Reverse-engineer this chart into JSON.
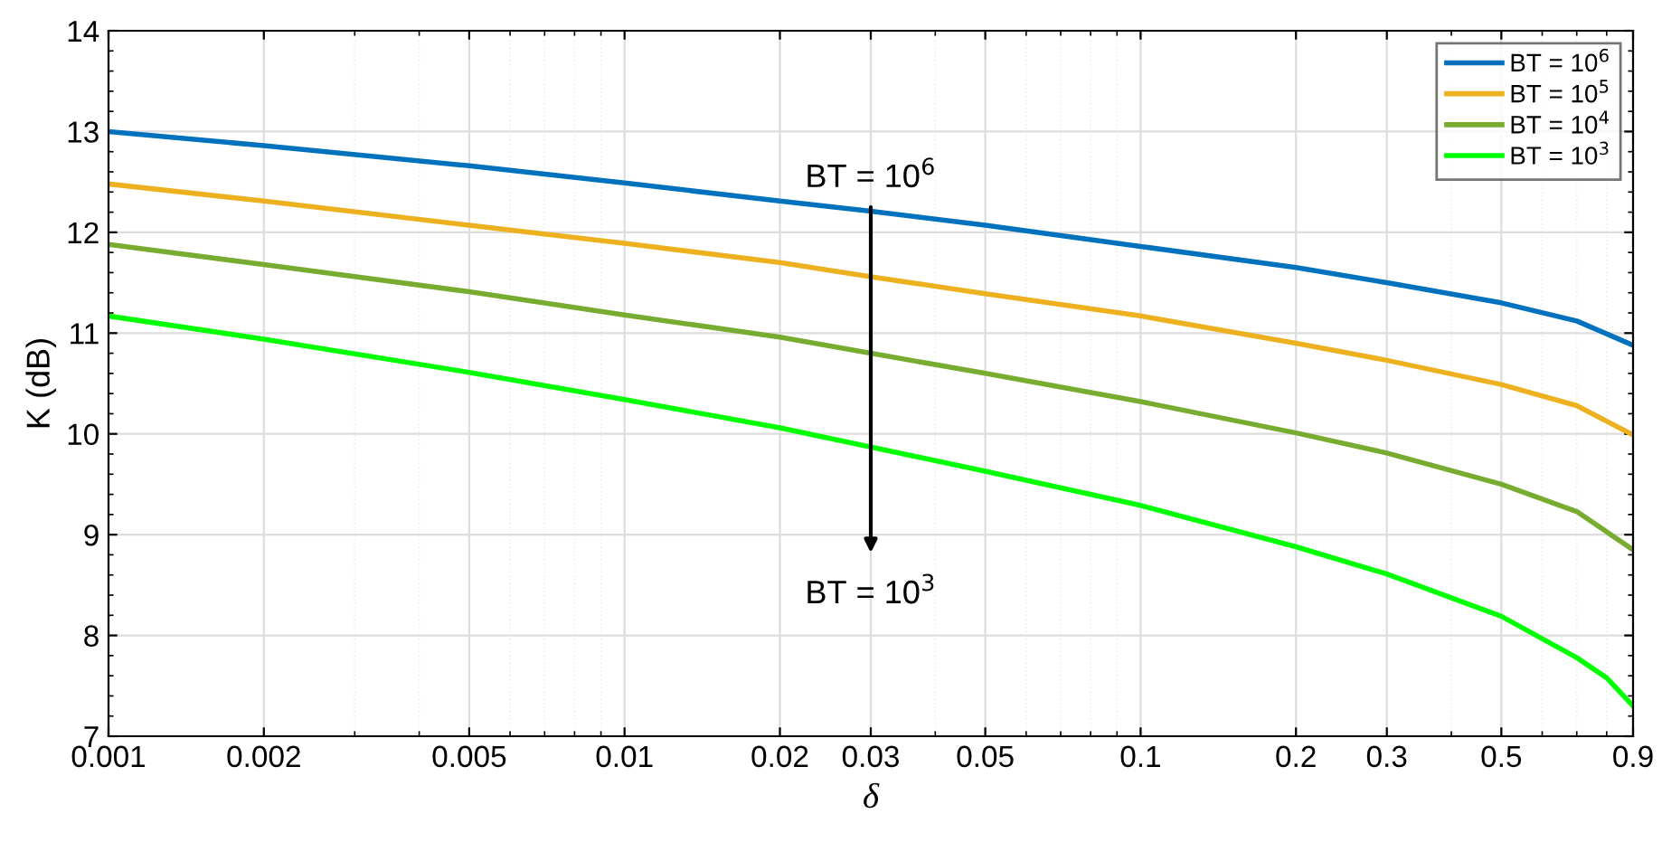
{
  "chart_data": {
    "type": "line",
    "xlabel": "δ",
    "ylabel": "K (dB)",
    "log": "x",
    "x": [
      0.001,
      0.002,
      0.005,
      0.01,
      0.02,
      0.03,
      0.05,
      0.1,
      0.2,
      0.3,
      0.5,
      0.7,
      0.8,
      0.9
    ],
    "series": [
      {
        "name": "BT = 10$^{6}$",
        "color": "#0072bd",
        "values": [
          13.0,
          12.86,
          12.66,
          12.49,
          12.31,
          12.21,
          12.07,
          11.86,
          11.65,
          11.5,
          11.3,
          11.12,
          null,
          10.88
        ]
      },
      {
        "name": "BT = 10$^{5}$",
        "color": "#edb120",
        "values": [
          12.48,
          12.31,
          12.07,
          11.89,
          11.7,
          11.56,
          11.39,
          11.17,
          10.9,
          10.73,
          10.49,
          10.28,
          null,
          9.99
        ]
      },
      {
        "name": "BT = 10$^{4}$",
        "color": "#77ac30",
        "values": [
          11.88,
          11.68,
          11.41,
          11.18,
          10.96,
          10.8,
          10.6,
          10.32,
          10.01,
          9.81,
          9.5,
          9.23,
          null,
          8.85
        ]
      },
      {
        "name": "BT = 10$^{3}$",
        "color": "#00ff00",
        "values": [
          11.17,
          10.94,
          10.61,
          10.34,
          10.06,
          9.87,
          9.63,
          9.29,
          8.88,
          8.61,
          8.19,
          7.78,
          7.58,
          7.3
        ]
      }
    ],
    "xlim": [
      0.001,
      0.9
    ],
    "xticks": [
      0.001,
      0.002,
      0.005,
      0.01,
      0.02,
      0.03,
      0.05,
      0.1,
      0.2,
      0.3,
      0.5,
      0.9
    ],
    "ylim": [
      7,
      14
    ],
    "yticks": [
      7,
      8,
      9,
      10,
      11,
      12,
      13,
      14
    ],
    "grid": true,
    "legend": "top right",
    "marker": "none",
    "line_style": "solid",
    "annotations": [
      "BT = 10$^{6}$",
      "BT = 10$^{3}$"
    ]
  }
}
